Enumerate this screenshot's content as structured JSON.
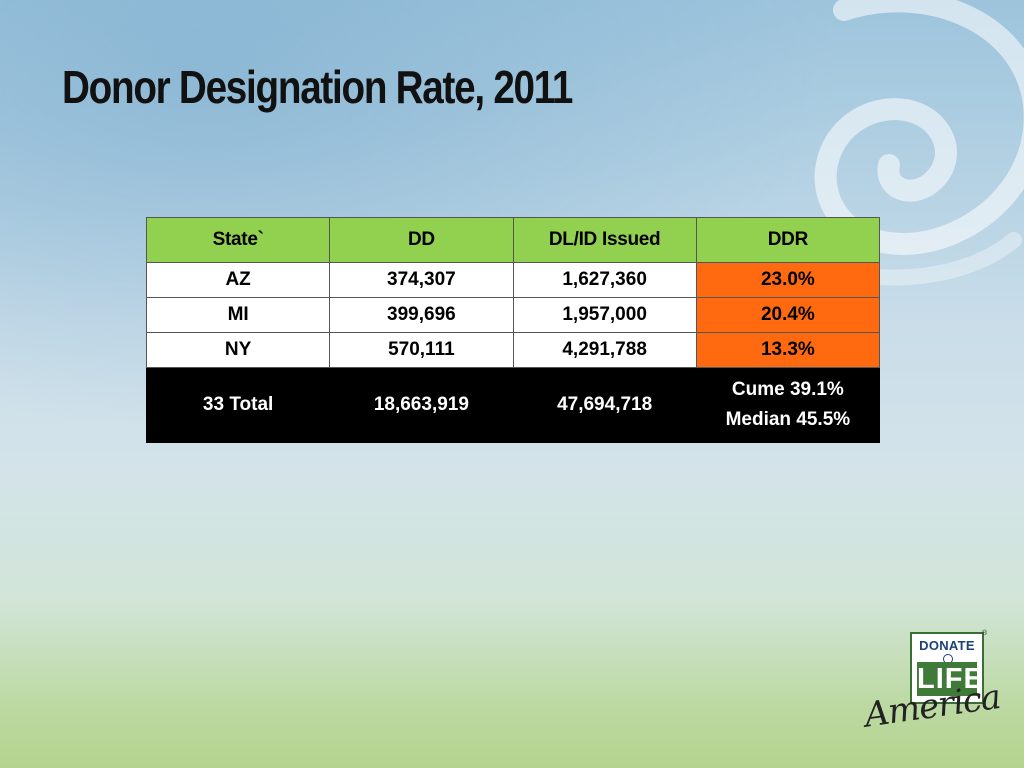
{
  "slide": {
    "title": "Donor Designation Rate, 2011"
  },
  "table": {
    "headers": [
      "State`",
      "DD",
      "DL/ID Issued",
      "DDR"
    ],
    "rows": [
      {
        "state": "AZ",
        "dd": "374,307",
        "issued": "1,627,360",
        "ddr": "23.0%"
      },
      {
        "state": "MI",
        "dd": "399,696",
        "issued": "1,957,000",
        "ddr": "20.4%"
      },
      {
        "state": "NY",
        "dd": "570,111",
        "issued": "4,291,788",
        "ddr": "13.3%"
      }
    ],
    "total": {
      "label": "33 Total",
      "dd": "18,663,919",
      "issued": "47,694,718",
      "cume": "Cume 39.1%",
      "median": "Median 45.5%"
    }
  },
  "logo": {
    "top_word": "DONATE",
    "middle_word": "LIFE",
    "script_word": "America",
    "mark": "®"
  },
  "colors": {
    "header_green": "#92d050",
    "rate_orange": "#ff6a10",
    "total_black": "#000000",
    "logo_green": "#3f7a39",
    "logo_blue": "#1d3f7a"
  }
}
